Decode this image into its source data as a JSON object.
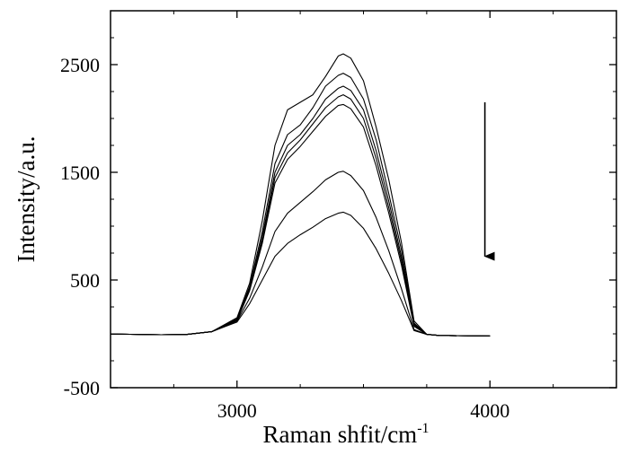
{
  "chart_data": {
    "type": "line",
    "xlabel": "Raman shfit/cm",
    "xlabel_superscript": "-1",
    "ylabel": "Intensity/a.u.",
    "xlim": [
      2500,
      4500
    ],
    "ylim": [
      -500,
      3000
    ],
    "x_ticks": [
      3000,
      4000
    ],
    "x_tick_labels": [
      "3000",
      "4000"
    ],
    "y_ticks": [
      -500,
      500,
      1500,
      2500
    ],
    "y_tick_labels": [
      "-500",
      "500",
      "1500",
      "2500"
    ],
    "grid": false,
    "legend": "none",
    "annotation": "downward arrow indicating decreasing intensity",
    "arrow": {
      "x": 3980,
      "y_start": 2150,
      "y_end": 720
    },
    "x": [
      2500,
      2700,
      2800,
      2900,
      3000,
      3050,
      3100,
      3150,
      3200,
      3250,
      3300,
      3350,
      3400,
      3420,
      3450,
      3500,
      3550,
      3600,
      3650,
      3700,
      3750,
      3800,
      4000
    ],
    "series": [
      {
        "values": [
          -2,
          -8,
          -6,
          20,
          150,
          470,
          1050,
          1750,
          2080,
          2150,
          2220,
          2390,
          2580,
          2600,
          2560,
          2350,
          1920,
          1430,
          850,
          120,
          -5,
          -15,
          -20
        ]
      },
      {
        "values": [
          -2,
          -8,
          -6,
          20,
          140,
          440,
          950,
          1580,
          1850,
          1940,
          2100,
          2300,
          2400,
          2420,
          2380,
          2180,
          1800,
          1300,
          780,
          100,
          -5,
          -15,
          -20
        ]
      },
      {
        "values": [
          -2,
          -8,
          -6,
          20,
          135,
          420,
          900,
          1500,
          1750,
          1850,
          2000,
          2180,
          2280,
          2300,
          2260,
          2080,
          1700,
          1230,
          720,
          90,
          -5,
          -15,
          -20
        ]
      },
      {
        "values": [
          -2,
          -8,
          -6,
          20,
          130,
          410,
          870,
          1450,
          1680,
          1800,
          1950,
          2100,
          2200,
          2220,
          2180,
          2000,
          1630,
          1170,
          680,
          80,
          -5,
          -15,
          -20
        ]
      },
      {
        "values": [
          -2,
          -8,
          -6,
          20,
          125,
          400,
          840,
          1400,
          1620,
          1740,
          1880,
          2020,
          2120,
          2130,
          2090,
          1920,
          1560,
          1120,
          640,
          70,
          -5,
          -15,
          -20
        ]
      },
      {
        "values": [
          -2,
          -8,
          -6,
          20,
          120,
          330,
          620,
          950,
          1120,
          1220,
          1320,
          1430,
          1500,
          1510,
          1470,
          1330,
          1080,
          770,
          420,
          40,
          -5,
          -15,
          -20
        ]
      },
      {
        "values": [
          -2,
          -8,
          -6,
          20,
          110,
          280,
          500,
          720,
          840,
          920,
          990,
          1070,
          1120,
          1130,
          1100,
          980,
          790,
          560,
          310,
          30,
          -5,
          -15,
          -20
        ]
      }
    ]
  }
}
